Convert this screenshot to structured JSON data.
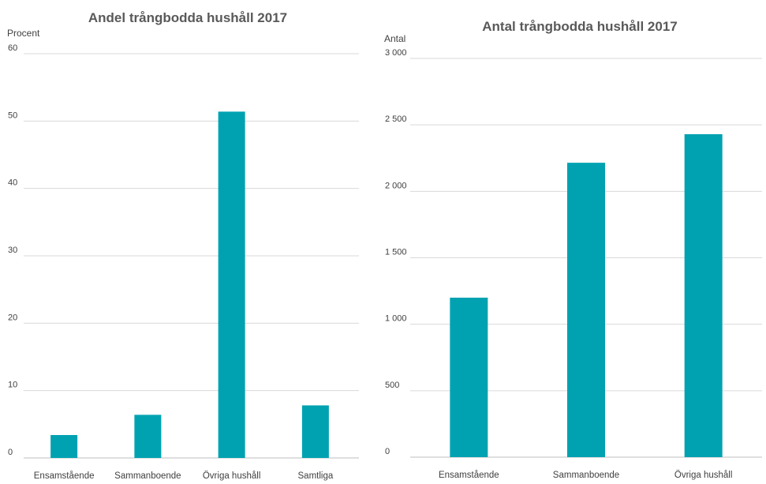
{
  "chart_data": [
    {
      "type": "bar",
      "title": "Andel trångbodda hushåll 2017",
      "ylabel": "Procent",
      "xlabel": "",
      "categories": [
        "Ensamstående",
        "Sammanboende",
        "Övriga hushåll",
        "Samtliga"
      ],
      "values": [
        3.4,
        6.4,
        51.4,
        7.8
      ],
      "ylim": [
        0,
        60
      ],
      "yticks": [
        0,
        10,
        20,
        30,
        40,
        50,
        60
      ],
      "ytick_labels": [
        "0",
        "10",
        "20",
        "30",
        "40",
        "50",
        "60"
      ],
      "grid": true,
      "legend": "none",
      "bar_color": "#00A2B1"
    },
    {
      "type": "bar",
      "title": "Antal trångbodda hushåll 2017",
      "ylabel": "Antal",
      "xlabel": "",
      "categories": [
        "Ensamstående",
        "Sammanboende",
        "Övriga hushåll"
      ],
      "values": [
        1200,
        2215,
        2430
      ],
      "ylim": [
        0,
        3000
      ],
      "yticks": [
        0,
        500,
        1000,
        1500,
        2000,
        2500,
        3000
      ],
      "ytick_labels": [
        "0",
        "500",
        "1 000",
        "1 500",
        "2 000",
        "2 500",
        "3 000"
      ],
      "grid": true,
      "legend": "none",
      "bar_color": "#00A2B1"
    }
  ]
}
